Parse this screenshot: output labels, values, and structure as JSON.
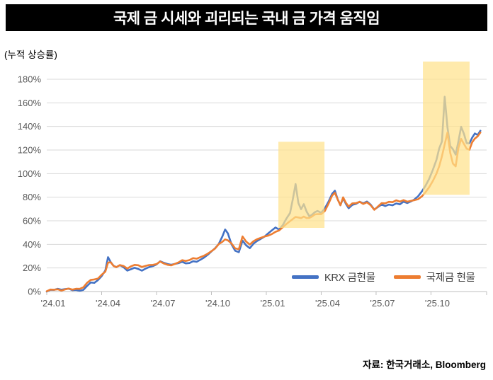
{
  "title": "국제 금 시세와 괴리되는 국내 금 가격 움직임",
  "y_axis_note": "(누적 상승률)",
  "source": "자료: 한국거래소, Bloomberg",
  "legend": [
    {
      "label": "KRX 금현물",
      "color": "#4472C4"
    },
    {
      "label": "국제금 현물",
      "color": "#ED7D31"
    }
  ],
  "colors": {
    "krx_line": "#4472C4",
    "intl_line": "#ED7D31",
    "highlight": "rgba(255,226,140,0.72)",
    "gridline": "#D9D9D9",
    "axis": "#BFBFBF",
    "tick_label": "#595959",
    "title_bg": "#000000",
    "title_fg": "#FFFFFF"
  },
  "chart_data": {
    "type": "line",
    "title": "국제 금 시세와 괴리되는 국내 금 가격 움직임",
    "ylabel": "(누적 상승률)",
    "x_unit": "months_since_2024_01",
    "x_tick_labels": [
      "'24.01",
      "'24.04",
      "'24.07",
      "'24.10",
      "'25.01",
      "'25.04",
      "'25.07",
      "'25.10"
    ],
    "x_tick_months": [
      0,
      3,
      6,
      9,
      12,
      15,
      18,
      21
    ],
    "y_tick_labels": [
      "0%",
      "20%",
      "40%",
      "60%",
      "80%",
      "100%",
      "120%",
      "140%",
      "160%",
      "180%"
    ],
    "y_ticks_pct": [
      0,
      20,
      40,
      60,
      80,
      100,
      120,
      140,
      160,
      180
    ],
    "ylim": [
      0,
      195
    ],
    "grid": true,
    "legend_position": "inside-bottom-right",
    "x": [
      0,
      0.2,
      0.4,
      0.6,
      0.8,
      1.0,
      1.2,
      1.4,
      1.6,
      1.8,
      2.0,
      2.2,
      2.4,
      2.6,
      2.8,
      3.0,
      3.2,
      3.35,
      3.5,
      3.65,
      3.8,
      4.0,
      4.2,
      4.4,
      4.6,
      4.8,
      5.0,
      5.2,
      5.4,
      5.6,
      5.8,
      6.0,
      6.2,
      6.4,
      6.6,
      6.8,
      7.0,
      7.2,
      7.4,
      7.6,
      7.8,
      8.0,
      8.2,
      8.4,
      8.6,
      8.8,
      9.0,
      9.2,
      9.4,
      9.6,
      9.75,
      9.9,
      10.1,
      10.3,
      10.5,
      10.7,
      10.9,
      11.1,
      11.3,
      11.5,
      11.7,
      11.9,
      12.1,
      12.3,
      12.5,
      12.7,
      12.9,
      13.1,
      13.3,
      13.45,
      13.6,
      13.75,
      13.9,
      14.05,
      14.2,
      14.35,
      14.5,
      14.65,
      14.8,
      15.0,
      15.2,
      15.4,
      15.6,
      15.75,
      15.9,
      16.05,
      16.2,
      16.35,
      16.5,
      16.7,
      16.9,
      17.1,
      17.3,
      17.5,
      17.7,
      17.9,
      18.1,
      18.3,
      18.5,
      18.7,
      18.9,
      19.1,
      19.3,
      19.5,
      19.7,
      19.9,
      20.1,
      20.3,
      20.5,
      20.7,
      20.9,
      21.1,
      21.3,
      21.45,
      21.6,
      21.75,
      21.9,
      22.05,
      22.2,
      22.35,
      22.5,
      22.65,
      22.8,
      22.95,
      23.1,
      23.25,
      23.4,
      23.55,
      23.7
    ],
    "series": [
      {
        "name": "KRX 금현물",
        "color": "#4472C4",
        "values": [
          0,
          1.2,
          0.8,
          1.5,
          0.7,
          1.4,
          2,
          1,
          1.6,
          1.2,
          2.2,
          5.5,
          8.5,
          8,
          10,
          13,
          17.5,
          28.5,
          24,
          21,
          20,
          22,
          20.5,
          18,
          19.5,
          21,
          20,
          18.5,
          20,
          21,
          21.5,
          22.5,
          25,
          23.5,
          22.5,
          22,
          23,
          24,
          25.5,
          24.5,
          25,
          26.5,
          26,
          27.5,
          29,
          31,
          33.5,
          36,
          39.5,
          46,
          52,
          49,
          40,
          35,
          34,
          44,
          40,
          37.5,
          41,
          43,
          44.5,
          46,
          48.5,
          51,
          53.5,
          52,
          56,
          62,
          67,
          79,
          92,
          76,
          70.5,
          74.5,
          68,
          63.5,
          64.5,
          66.5,
          67.5,
          66,
          70,
          76,
          83,
          86,
          79,
          74,
          80,
          75,
          71,
          73.5,
          74,
          75.5,
          74,
          75.5,
          73,
          69,
          71.5,
          74,
          73,
          74.5,
          74,
          75.5,
          74.5,
          76.5,
          75,
          76,
          77.5,
          80,
          84,
          89,
          95,
          103,
          112,
          122,
          128,
          166,
          140,
          124,
          121,
          116,
          127,
          139,
          133,
          125,
          125,
          130,
          134,
          133,
          137
        ]
      },
      {
        "name": "국제금 현물",
        "color": "#ED7D31",
        "values": [
          0,
          1.8,
          2,
          2.6,
          1.6,
          2.6,
          3.2,
          2,
          2.4,
          2,
          3,
          6.5,
          9,
          9.5,
          10.5,
          14,
          17,
          25,
          25.5,
          22.5,
          21.5,
          23,
          22,
          19.5,
          21,
          22,
          21.5,
          20,
          21,
          22,
          22.5,
          23.5,
          26,
          24.5,
          23.5,
          23,
          24,
          25,
          26.5,
          25.5,
          26,
          27.5,
          27,
          28.5,
          30,
          32,
          34.5,
          37,
          41,
          43,
          45,
          44,
          41,
          36.5,
          35.5,
          46,
          41.5,
          39,
          42,
          44,
          45.5,
          47,
          48,
          49.5,
          51.5,
          52.5,
          55,
          57.5,
          59.5,
          61,
          62.5,
          62,
          61.5,
          63,
          62,
          62.5,
          64,
          66,
          66.5,
          66.5,
          69,
          75,
          81.5,
          83.5,
          77.5,
          72.5,
          79,
          74.5,
          71.5,
          74.5,
          75,
          76.5,
          75,
          76.5,
          74,
          70,
          72.5,
          75,
          74.5,
          75.5,
          75,
          76.5,
          75.5,
          77,
          76,
          77,
          78,
          79,
          81.5,
          85,
          89,
          94,
          100,
          106,
          114,
          124,
          134,
          117,
          108,
          106,
          122,
          130,
          126,
          122,
          121,
          127,
          130,
          131.5,
          134.5
        ]
      }
    ],
    "highlight_regions": [
      {
        "x0_month": 12.66,
        "x1_month": 15.18,
        "pct_bottom": 54,
        "pct_top": 127
      },
      {
        "x0_month": 20.56,
        "x1_month": 23.11,
        "pct_bottom": 82,
        "pct_top": 195
      }
    ],
    "highlight_fill": "rgba(255,226,140,0.72)"
  }
}
